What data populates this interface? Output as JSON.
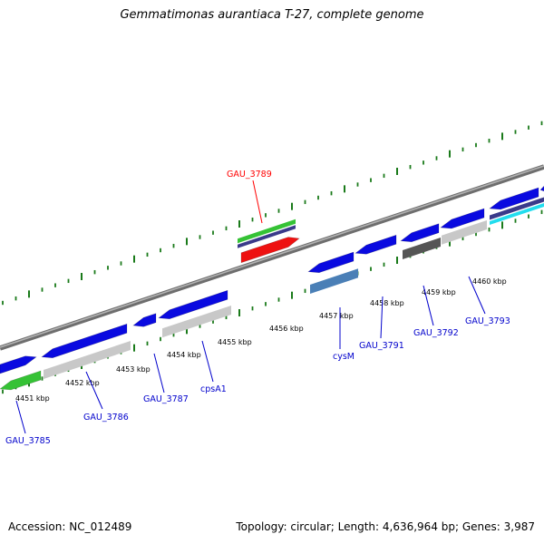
{
  "title": "Gemmatimonas aurantiaca T-27, complete genome",
  "footer": {
    "accession": "Accession: NC_012489",
    "summary": "Topology: circular; Length: 4,636,964 bp; Genes: 3,987"
  },
  "ticks": [
    "4451 kbp",
    "4452 kbp",
    "4453 kbp",
    "4454 kbp",
    "4455 kbp",
    "4456 kbp",
    "4457 kbp",
    "4458 kbp",
    "4459 kbp",
    "4460 kbp"
  ],
  "genes": [
    {
      "name": "GAU_3785",
      "color": "#0000cc"
    },
    {
      "name": "GAU_3786",
      "color": "#0000cc"
    },
    {
      "name": "GAU_3787",
      "color": "#0000cc"
    },
    {
      "name": "cpsA1",
      "color": "#0000cc"
    },
    {
      "name": "GAU_3789",
      "color": "#ff0000"
    },
    {
      "name": "cysM",
      "color": "#0000cc"
    },
    {
      "name": "GAU_3791",
      "color": "#0000cc"
    },
    {
      "name": "GAU_3792",
      "color": "#0000cc"
    },
    {
      "name": "GAU_3793",
      "color": "#0000cc"
    }
  ],
  "feature_colors": {
    "cds": "#0a0ae0",
    "gene_gray": "#c8c8c8",
    "dark_gray": "#555555",
    "green": "#35c235",
    "navy": "#3a3a8a",
    "red": "#ee1111",
    "steelblue": "#4a7fb6",
    "cyan": "#22ddee",
    "backbone": "#8a8a8a",
    "tick_green": "#1a7a1a"
  }
}
